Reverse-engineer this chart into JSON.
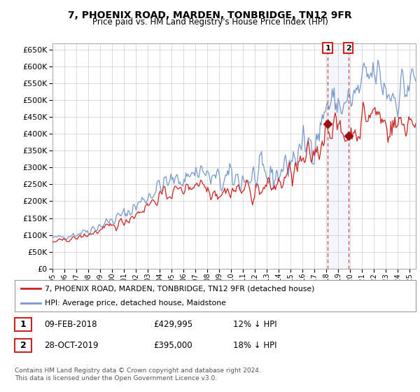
{
  "title": "7, PHOENIX ROAD, MARDEN, TONBRIDGE, TN12 9FR",
  "subtitle": "Price paid vs. HM Land Registry's House Price Index (HPI)",
  "ylim": [
    0,
    670000
  ],
  "yticks": [
    0,
    50000,
    100000,
    150000,
    200000,
    250000,
    300000,
    350000,
    400000,
    450000,
    500000,
    550000,
    600000,
    650000
  ],
  "xlim_start": 1995.0,
  "xlim_end": 2025.5,
  "line1_color": "#cc2222",
  "line2_color": "#7799cc",
  "sale1_x": 2018.1,
  "sale1_y": 429995,
  "sale2_x": 2019.83,
  "sale2_y": 395000,
  "legend_label1": "7, PHOENIX ROAD, MARDEN, TONBRIDGE, TN12 9FR (detached house)",
  "legend_label2": "HPI: Average price, detached house, Maidstone",
  "table_row1": [
    "1",
    "09-FEB-2018",
    "£429,995",
    "12% ↓ HPI"
  ],
  "table_row2": [
    "2",
    "28-OCT-2019",
    "£395,000",
    "18% ↓ HPI"
  ],
  "footer": "Contains HM Land Registry data © Crown copyright and database right 2024.\nThis data is licensed under the Open Government Licence v3.0.",
  "bg_color": "#ffffff",
  "grid_color": "#cccccc"
}
